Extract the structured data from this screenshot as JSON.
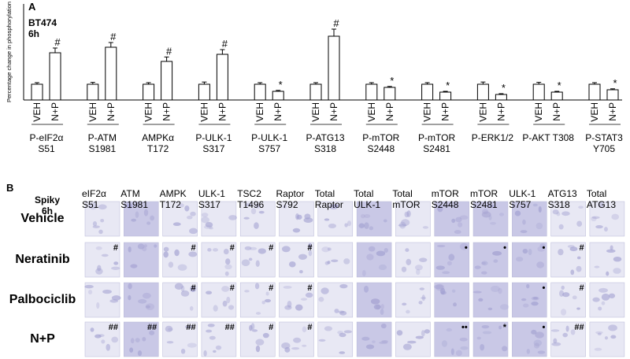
{
  "chart_data": {
    "type": "bar",
    "panel_label": "A",
    "annotation": "BT474 6h",
    "y_label": "Percentage change in phosphorylation",
    "categories": [
      "P-eIF2α S51",
      "P-ATM S1981",
      "AMPKα T172",
      "P-ULK-1 S317",
      "P-ULK-1 S757",
      "P-ATG13 S318",
      "P-mTOR S2448",
      "P-mTOR S2481",
      "P-ERK1/2",
      "P-AKT T308",
      "P-STAT3 Y705"
    ],
    "series": [
      {
        "name": "VEH",
        "color": "#ffffff",
        "values": [
          100,
          100,
          100,
          100,
          100,
          100,
          100,
          100,
          100,
          100,
          100
        ],
        "errors": [
          10,
          12,
          10,
          14,
          10,
          10,
          10,
          10,
          14,
          12,
          10
        ]
      },
      {
        "name": "N+P",
        "color": "#ffffff",
        "values": [
          300,
          335,
          245,
          290,
          55,
          405,
          80,
          50,
          35,
          50,
          65
        ],
        "errors": [
          30,
          30,
          28,
          30,
          6,
          45,
          6,
          5,
          5,
          5,
          6
        ],
        "significance": [
          "#",
          "#",
          "#",
          "#",
          "*",
          "#",
          "*",
          "*",
          "*",
          "*",
          "*"
        ]
      }
    ],
    "ylim": [
      0,
      610
    ]
  },
  "panel_b": {
    "label": "B",
    "corner": "Spiky 6h",
    "columns": [
      "eIF2α S51",
      "ATM S1981",
      "AMPK T172",
      "ULK-1 S317",
      "TSC2 T1496",
      "Raptor S792",
      "Total Raptor",
      "Total ULK-1",
      "Total mTOR",
      "mTOR S2448",
      "mTOR S2481",
      "ULK-1 S757",
      "ATG13 S318",
      "Total ATG13"
    ],
    "rows": [
      {
        "label": "Vehicle",
        "marks": [
          null,
          null,
          null,
          null,
          null,
          null,
          null,
          null,
          null,
          null,
          null,
          null,
          null,
          null
        ]
      },
      {
        "label": "Neratinib",
        "marks": [
          "#",
          null,
          "#",
          "#",
          "#",
          "#",
          null,
          null,
          null,
          "•",
          "•",
          "•",
          "#",
          null
        ]
      },
      {
        "label": "Palbociclib",
        "marks": [
          null,
          null,
          "#",
          "#",
          "#",
          "#",
          null,
          null,
          null,
          null,
          null,
          "•",
          "#",
          null
        ]
      },
      {
        "label": "N+P",
        "marks": [
          "##",
          "##",
          "##",
          "##",
          "#",
          "#",
          null,
          null,
          null,
          "••",
          "*",
          "•",
          "##",
          null
        ]
      }
    ]
  }
}
